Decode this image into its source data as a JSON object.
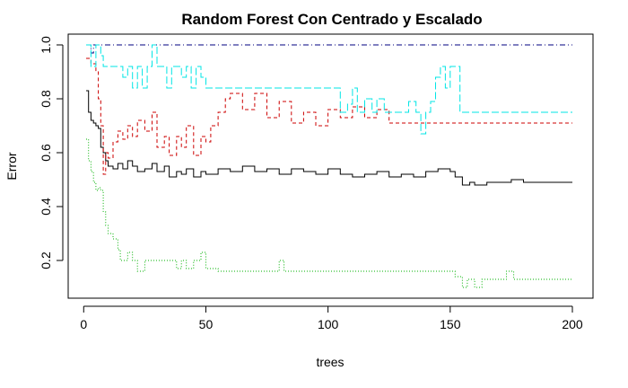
{
  "chart_data": {
    "type": "line",
    "title": "Random Forest Con Centrado y Escalado",
    "xlabel": "trees",
    "ylabel": "Error",
    "xlim": [
      1,
      200
    ],
    "ylim": [
      0.1,
      1.0
    ],
    "xticks": [
      0,
      50,
      100,
      150,
      200
    ],
    "yticks": [
      0.2,
      0.4,
      0.6,
      0.8,
      1.0
    ],
    "ytick_labels": [
      "0.2",
      "0.4",
      "0.6",
      "0.8",
      "1.0"
    ],
    "grid": false,
    "legend": "none",
    "series": [
      {
        "color": "#000000",
        "dash": "solid",
        "points": [
          [
            1,
            0.83
          ],
          [
            2,
            0.75
          ],
          [
            3,
            0.72
          ],
          [
            4,
            0.71
          ],
          [
            5,
            0.7
          ],
          [
            6,
            0.69
          ],
          [
            7,
            0.62
          ],
          [
            8,
            0.6
          ],
          [
            9,
            0.57
          ],
          [
            10,
            0.55
          ],
          [
            12,
            0.54
          ],
          [
            14,
            0.56
          ],
          [
            16,
            0.54
          ],
          [
            18,
            0.57
          ],
          [
            20,
            0.55
          ],
          [
            22,
            0.53
          ],
          [
            25,
            0.54
          ],
          [
            28,
            0.56
          ],
          [
            30,
            0.53
          ],
          [
            33,
            0.55
          ],
          [
            35,
            0.51
          ],
          [
            38,
            0.53
          ],
          [
            40,
            0.52
          ],
          [
            42,
            0.54
          ],
          [
            45,
            0.51
          ],
          [
            48,
            0.53
          ],
          [
            50,
            0.52
          ],
          [
            55,
            0.54
          ],
          [
            60,
            0.53
          ],
          [
            65,
            0.55
          ],
          [
            70,
            0.53
          ],
          [
            75,
            0.54
          ],
          [
            80,
            0.52
          ],
          [
            85,
            0.54
          ],
          [
            90,
            0.53
          ],
          [
            95,
            0.52
          ],
          [
            100,
            0.54
          ],
          [
            105,
            0.52
          ],
          [
            110,
            0.51
          ],
          [
            115,
            0.52
          ],
          [
            120,
            0.53
          ],
          [
            125,
            0.51
          ],
          [
            130,
            0.52
          ],
          [
            135,
            0.51
          ],
          [
            140,
            0.53
          ],
          [
            145,
            0.54
          ],
          [
            150,
            0.53
          ],
          [
            152,
            0.51
          ],
          [
            155,
            0.48
          ],
          [
            158,
            0.49
          ],
          [
            160,
            0.48
          ],
          [
            165,
            0.49
          ],
          [
            170,
            0.49
          ],
          [
            175,
            0.5
          ],
          [
            180,
            0.49
          ],
          [
            190,
            0.49
          ],
          [
            200,
            0.49
          ]
        ]
      },
      {
        "color": "#cc0000",
        "dash": "dashed",
        "points": [
          [
            1,
            0.95
          ],
          [
            3,
            0.93
          ],
          [
            5,
            0.9
          ],
          [
            6,
            0.8
          ],
          [
            7,
            0.7
          ],
          [
            8,
            0.52
          ],
          [
            9,
            0.6
          ],
          [
            10,
            0.58
          ],
          [
            12,
            0.64
          ],
          [
            14,
            0.68
          ],
          [
            16,
            0.65
          ],
          [
            18,
            0.7
          ],
          [
            20,
            0.66
          ],
          [
            22,
            0.72
          ],
          [
            25,
            0.68
          ],
          [
            28,
            0.75
          ],
          [
            30,
            0.62
          ],
          [
            33,
            0.66
          ],
          [
            35,
            0.59
          ],
          [
            38,
            0.66
          ],
          [
            40,
            0.62
          ],
          [
            42,
            0.7
          ],
          [
            45,
            0.59
          ],
          [
            48,
            0.66
          ],
          [
            50,
            0.64
          ],
          [
            52,
            0.7
          ],
          [
            55,
            0.75
          ],
          [
            58,
            0.8
          ],
          [
            60,
            0.82
          ],
          [
            65,
            0.76
          ],
          [
            70,
            0.82
          ],
          [
            75,
            0.73
          ],
          [
            80,
            0.79
          ],
          [
            85,
            0.71
          ],
          [
            90,
            0.75
          ],
          [
            95,
            0.7
          ],
          [
            100,
            0.76
          ],
          [
            105,
            0.73
          ],
          [
            110,
            0.77
          ],
          [
            115,
            0.73
          ],
          [
            120,
            0.76
          ],
          [
            125,
            0.71
          ],
          [
            130,
            0.71
          ],
          [
            150,
            0.71
          ],
          [
            170,
            0.71
          ],
          [
            200,
            0.71
          ]
        ]
      },
      {
        "color": "#00b000",
        "dash": "dotted",
        "points": [
          [
            1,
            0.65
          ],
          [
            2,
            0.57
          ],
          [
            3,
            0.53
          ],
          [
            4,
            0.49
          ],
          [
            5,
            0.46
          ],
          [
            6,
            0.47
          ],
          [
            7,
            0.46
          ],
          [
            8,
            0.38
          ],
          [
            9,
            0.33
          ],
          [
            10,
            0.3
          ],
          [
            12,
            0.28
          ],
          [
            14,
            0.24
          ],
          [
            15,
            0.2
          ],
          [
            18,
            0.23
          ],
          [
            20,
            0.2
          ],
          [
            22,
            0.16
          ],
          [
            25,
            0.2
          ],
          [
            30,
            0.2
          ],
          [
            35,
            0.2
          ],
          [
            38,
            0.17
          ],
          [
            40,
            0.2
          ],
          [
            42,
            0.17
          ],
          [
            45,
            0.2
          ],
          [
            48,
            0.23
          ],
          [
            50,
            0.17
          ],
          [
            55,
            0.16
          ],
          [
            60,
            0.16
          ],
          [
            70,
            0.16
          ],
          [
            78,
            0.16
          ],
          [
            80,
            0.2
          ],
          [
            82,
            0.16
          ],
          [
            90,
            0.16
          ],
          [
            100,
            0.16
          ],
          [
            120,
            0.16
          ],
          [
            140,
            0.16
          ],
          [
            150,
            0.16
          ],
          [
            152,
            0.14
          ],
          [
            155,
            0.1
          ],
          [
            157,
            0.13
          ],
          [
            160,
            0.1
          ],
          [
            163,
            0.13
          ],
          [
            170,
            0.13
          ],
          [
            173,
            0.16
          ],
          [
            176,
            0.13
          ],
          [
            180,
            0.13
          ],
          [
            190,
            0.13
          ],
          [
            200,
            0.13
          ]
        ]
      },
      {
        "color": "#000080",
        "dash": "dashdot",
        "points": [
          [
            1,
            1.0
          ],
          [
            3,
            0.97
          ],
          [
            4,
            1.0
          ],
          [
            200,
            1.0
          ]
        ]
      },
      {
        "color": "#00e5e5",
        "dash": "longdash",
        "points": [
          [
            1,
            1.0
          ],
          [
            3,
            0.92
          ],
          [
            5,
            1.0
          ],
          [
            7,
            0.96
          ],
          [
            8,
            0.92
          ],
          [
            10,
            0.92
          ],
          [
            14,
            0.92
          ],
          [
            16,
            0.88
          ],
          [
            18,
            0.92
          ],
          [
            20,
            0.84
          ],
          [
            22,
            0.92
          ],
          [
            24,
            0.84
          ],
          [
            26,
            0.92
          ],
          [
            28,
            1.0
          ],
          [
            30,
            0.92
          ],
          [
            32,
            0.92
          ],
          [
            34,
            0.84
          ],
          [
            36,
            0.92
          ],
          [
            38,
            0.92
          ],
          [
            40,
            0.88
          ],
          [
            42,
            0.92
          ],
          [
            44,
            0.84
          ],
          [
            46,
            0.92
          ],
          [
            48,
            0.88
          ],
          [
            50,
            0.84
          ],
          [
            55,
            0.84
          ],
          [
            60,
            0.84
          ],
          [
            70,
            0.84
          ],
          [
            80,
            0.84
          ],
          [
            90,
            0.84
          ],
          [
            100,
            0.84
          ],
          [
            103,
            0.84
          ],
          [
            105,
            0.75
          ],
          [
            108,
            0.78
          ],
          [
            110,
            0.84
          ],
          [
            112,
            0.75
          ],
          [
            115,
            0.8
          ],
          [
            118,
            0.75
          ],
          [
            120,
            0.8
          ],
          [
            123,
            0.75
          ],
          [
            126,
            0.75
          ],
          [
            130,
            0.75
          ],
          [
            133,
            0.79
          ],
          [
            136,
            0.75
          ],
          [
            138,
            0.67
          ],
          [
            140,
            0.75
          ],
          [
            142,
            0.79
          ],
          [
            144,
            0.88
          ],
          [
            146,
            0.92
          ],
          [
            148,
            0.84
          ],
          [
            150,
            0.92
          ],
          [
            152,
            0.92
          ],
          [
            154,
            0.75
          ],
          [
            160,
            0.75
          ],
          [
            170,
            0.75
          ],
          [
            180,
            0.75
          ],
          [
            190,
            0.75
          ],
          [
            200,
            0.75
          ]
        ]
      }
    ]
  }
}
